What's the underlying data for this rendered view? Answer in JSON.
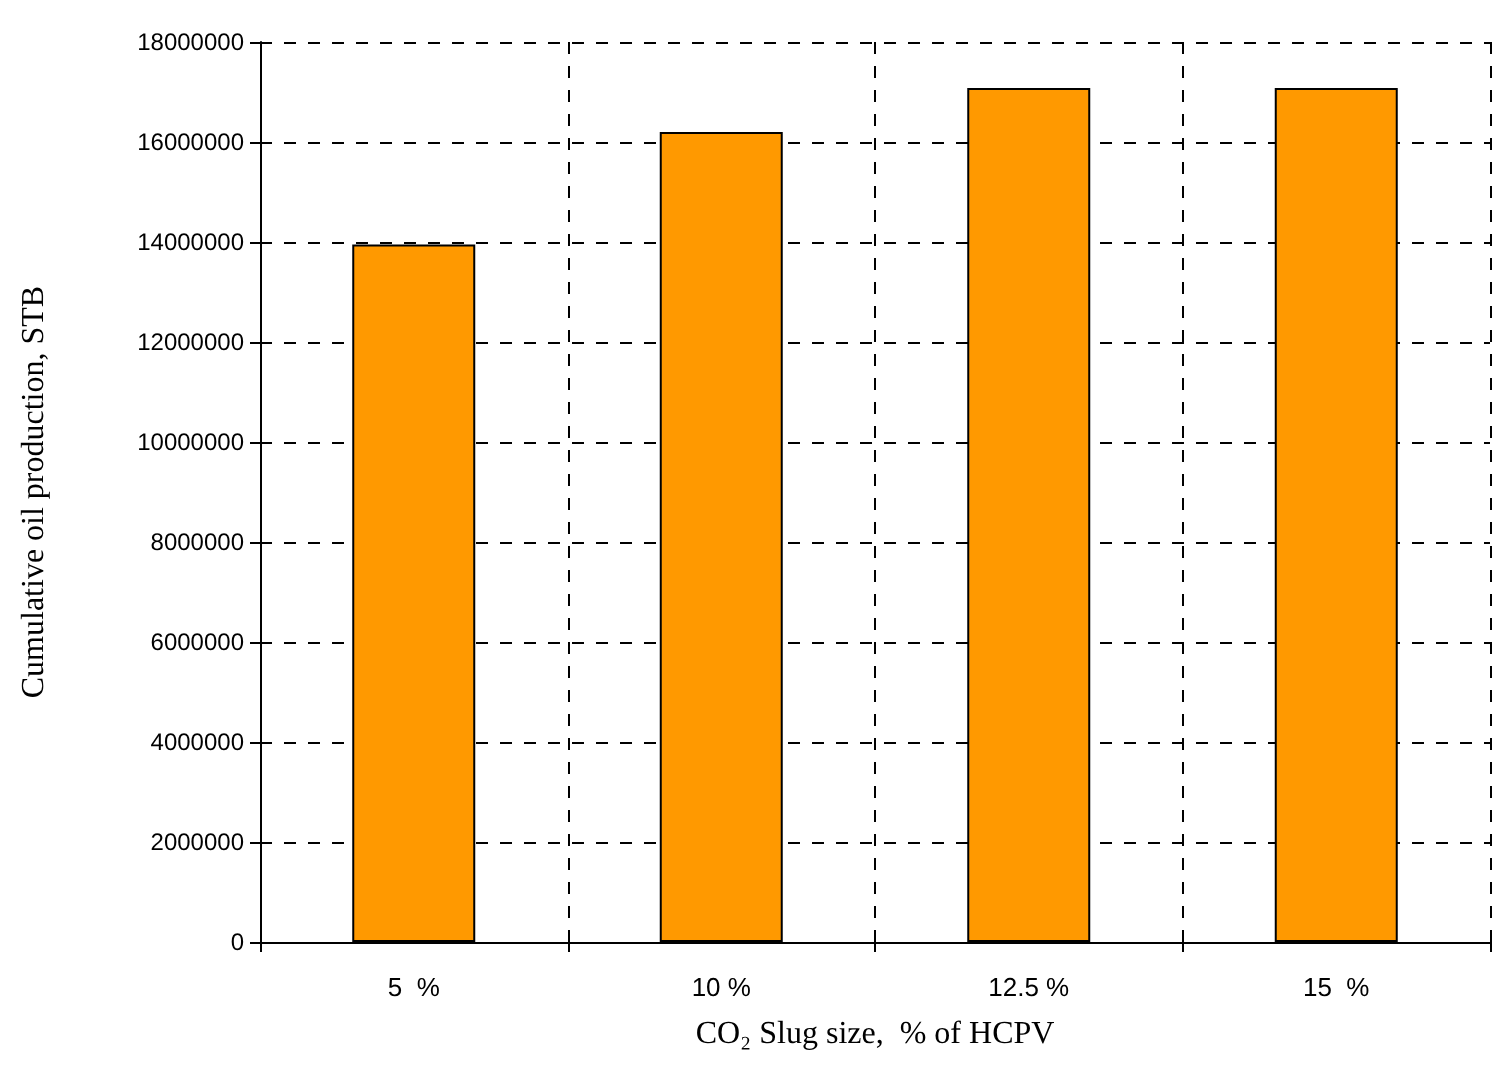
{
  "chart_data": {
    "type": "bar",
    "xlabel": "CO₂ Slug size,  % of HCPV",
    "ylabel": "Cumulative oil production, STB",
    "categories": [
      "5  %",
      "10 %",
      "12.5 %",
      "15  %"
    ],
    "values": [
      13950000,
      16200000,
      17080000,
      17080000
    ],
    "color": "#ff9900",
    "ylim": [
      0,
      18000000
    ],
    "yticks": [
      0,
      2000000,
      4000000,
      6000000,
      8000000,
      10000000,
      12000000,
      14000000,
      16000000,
      18000000
    ],
    "grid": true
  }
}
